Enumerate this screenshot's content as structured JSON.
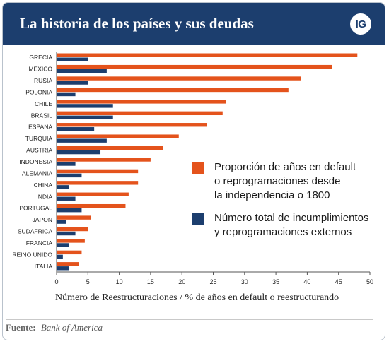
{
  "header": {
    "title": "La historia de los países y sus deudas",
    "logo_text": "IG"
  },
  "colors": {
    "header_bg": "#1c3e6e",
    "series_orange": "#e4531c",
    "series_navy": "#1c3e6e",
    "axis": "#555555"
  },
  "chart_data": {
    "type": "bar",
    "orientation": "horizontal",
    "categories": [
      "GRECIA",
      "MEXICO",
      "RUSIA",
      "POLONIA",
      "CHILE",
      "BRASIL",
      "ESPAÑA",
      "TURQUIA",
      "AUSTRIA",
      "INDONESIA",
      "ALEMANIA",
      "CHINA",
      "INDIA",
      "PORTUGAL",
      "JAPON",
      "SUDAFRICA",
      "FRANCIA",
      "REINO UNIDO",
      "ITALIA"
    ],
    "series": [
      {
        "name": "Proporción de años en default o reprogramaciones desde la independencia o 1800",
        "color": "#e4531c",
        "values": [
          48.0,
          44.0,
          39.0,
          37.0,
          27.0,
          26.5,
          24.0,
          19.5,
          17.0,
          15.0,
          13.0,
          13.0,
          11.5,
          11.0,
          5.5,
          5.0,
          4.5,
          4.0,
          3.5
        ]
      },
      {
        "name": "Número total de incumplimientos y reprogramaciones externos",
        "color": "#1c3e6e",
        "values": [
          5,
          8,
          5,
          3,
          9,
          9,
          6,
          8,
          7,
          3,
          4,
          2,
          3,
          4,
          1.5,
          3,
          2,
          1,
          2
        ]
      }
    ],
    "xlim": [
      0,
      50
    ],
    "xticks": [
      0,
      5,
      10,
      15,
      20,
      25,
      30,
      35,
      40,
      45,
      50
    ],
    "xlabel": "Número de Reestructuraciones / % de años en default o reestructurando",
    "legend": [
      "Proporción de años en default\no reprogramaciones desde\nla independencia o 1800",
      "Número total de incumplimientos\ny reprogramaciones externos"
    ],
    "grid": false
  },
  "source": {
    "label": "Fuente:",
    "value": "Bank of America"
  }
}
